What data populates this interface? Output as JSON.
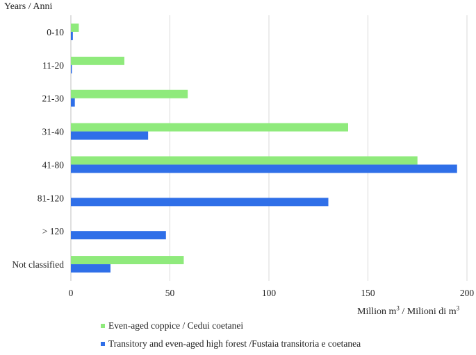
{
  "chart_data": {
    "type": "bar",
    "orientation": "horizontal",
    "title": "",
    "ylabel": "Years / Anni",
    "xlabel": {
      "base": "Million m",
      "sup1": "3",
      "mid": " / Milioni di m",
      "sup2": "3"
    },
    "xlim": [
      0,
      200
    ],
    "xticks": [
      0,
      50,
      100,
      150,
      200
    ],
    "grid": "vertical",
    "legend_position": "bottom",
    "categories": [
      "0-10",
      "11-20",
      "21-30",
      "31-40",
      "41-80",
      "81-120",
      "> 120",
      "Not classified"
    ],
    "series": [
      {
        "name": "Even-aged coppice / Cedui coetanei",
        "color": "#8fea7c",
        "values": [
          4,
          27,
          59,
          140,
          175,
          0,
          0,
          57
        ]
      },
      {
        "name": "Transitory and even-aged high forest /Fustaia transitoria e coetanea",
        "color": "#2f6fe8",
        "values": [
          1,
          0.5,
          2,
          39,
          195,
          130,
          48,
          20
        ]
      }
    ]
  }
}
